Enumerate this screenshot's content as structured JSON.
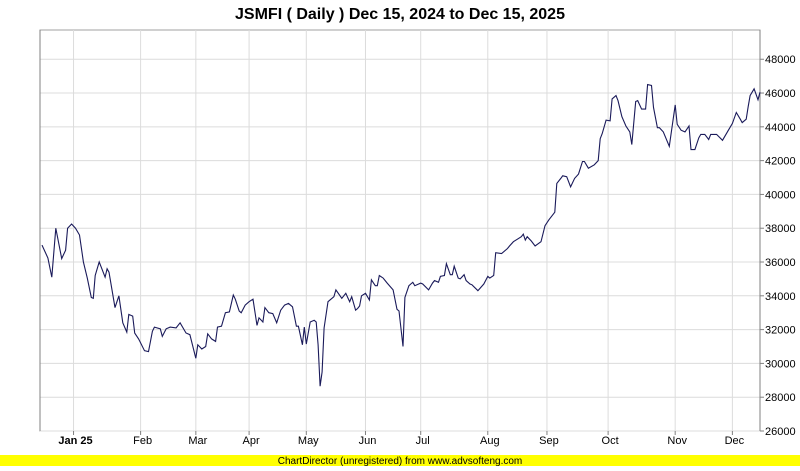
{
  "chart_data": {
    "type": "line",
    "title": "JSMFI ( Daily ) Dec 15, 2024 to Dec 15, 2025",
    "xlabel": "",
    "ylabel": "",
    "x_unit": "days since Dec 15, 2024",
    "xlim": [
      0,
      365
    ],
    "ylim": [
      26000,
      49730
    ],
    "y_ticks": [
      26000,
      28000,
      30000,
      32000,
      34000,
      36000,
      38000,
      40000,
      42000,
      44000,
      46000,
      48000
    ],
    "x_ticks": [
      {
        "label": "Jan 25",
        "day": 17,
        "bold": true
      },
      {
        "label": "Feb",
        "day": 51
      },
      {
        "label": "Mar",
        "day": 79
      },
      {
        "label": "Apr",
        "day": 106
      },
      {
        "label": "May",
        "day": 135
      },
      {
        "label": "Jun",
        "day": 165
      },
      {
        "label": "Jul",
        "day": 193
      },
      {
        "label": "Aug",
        "day": 227
      },
      {
        "label": "Sep",
        "day": 257
      },
      {
        "label": "Oct",
        "day": 288
      },
      {
        "label": "Nov",
        "day": 322
      },
      {
        "label": "Dec",
        "day": 351
      }
    ],
    "grid": true,
    "line_color": "#1a1a5a",
    "series": [
      {
        "name": "JSMFI",
        "points": [
          [
            1,
            37000
          ],
          [
            4,
            36240
          ],
          [
            6,
            35100
          ],
          [
            8,
            38000
          ],
          [
            11,
            36200
          ],
          [
            13,
            36700
          ],
          [
            14,
            38000
          ],
          [
            16,
            38250
          ],
          [
            18,
            38000
          ],
          [
            20,
            37600
          ],
          [
            22,
            36000
          ],
          [
            24,
            35050
          ],
          [
            26,
            33900
          ],
          [
            27,
            33850
          ],
          [
            28,
            35200
          ],
          [
            30,
            36000
          ],
          [
            31,
            35700
          ],
          [
            33,
            35100
          ],
          [
            34,
            35600
          ],
          [
            35,
            35400
          ],
          [
            38,
            33300
          ],
          [
            40,
            34000
          ],
          [
            42,
            32400
          ],
          [
            44,
            31850
          ],
          [
            45,
            32900
          ],
          [
            47,
            32800
          ],
          [
            48,
            31800
          ],
          [
            50,
            31450
          ],
          [
            53,
            30750
          ],
          [
            55,
            30700
          ],
          [
            57,
            31900
          ],
          [
            58,
            32150
          ],
          [
            61,
            32050
          ],
          [
            62,
            31600
          ],
          [
            64,
            32050
          ],
          [
            66,
            32150
          ],
          [
            69,
            32100
          ],
          [
            71,
            32400
          ],
          [
            74,
            31800
          ],
          [
            76,
            31700
          ],
          [
            79,
            30300
          ],
          [
            80,
            31100
          ],
          [
            82,
            30850
          ],
          [
            84,
            31000
          ],
          [
            85,
            31750
          ],
          [
            87,
            31450
          ],
          [
            89,
            31300
          ],
          [
            90,
            32150
          ],
          [
            92,
            32200
          ],
          [
            94,
            33000
          ],
          [
            96,
            33050
          ],
          [
            98,
            34050
          ],
          [
            99,
            33800
          ],
          [
            101,
            33100
          ],
          [
            102,
            33000
          ],
          [
            104,
            33450
          ],
          [
            106,
            33650
          ],
          [
            108,
            33800
          ],
          [
            110,
            32250
          ],
          [
            111,
            32700
          ],
          [
            113,
            32450
          ],
          [
            114,
            33300
          ],
          [
            116,
            33000
          ],
          [
            118,
            32950
          ],
          [
            120,
            32400
          ],
          [
            122,
            33150
          ],
          [
            124,
            33450
          ],
          [
            126,
            33550
          ],
          [
            128,
            33350
          ],
          [
            130,
            32200
          ],
          [
            131,
            32200
          ],
          [
            133,
            31100
          ],
          [
            134,
            32150
          ],
          [
            135,
            31150
          ],
          [
            137,
            32450
          ],
          [
            139,
            32550
          ],
          [
            140,
            32450
          ],
          [
            141,
            31100
          ],
          [
            142,
            28650
          ],
          [
            143,
            29500
          ],
          [
            144,
            32100
          ],
          [
            146,
            33650
          ],
          [
            149,
            33950
          ],
          [
            150,
            34350
          ],
          [
            153,
            33850
          ],
          [
            155,
            34150
          ],
          [
            156,
            33900
          ],
          [
            157,
            33650
          ],
          [
            158,
            33950
          ],
          [
            160,
            33150
          ],
          [
            161,
            33250
          ],
          [
            162,
            33400
          ],
          [
            163,
            34000
          ],
          [
            165,
            34150
          ],
          [
            167,
            33750
          ],
          [
            168,
            34950
          ],
          [
            170,
            34600
          ],
          [
            171,
            34600
          ],
          [
            172,
            35200
          ],
          [
            174,
            35050
          ],
          [
            176,
            34750
          ],
          [
            179,
            34350
          ],
          [
            181,
            33200
          ],
          [
            182,
            33100
          ],
          [
            184,
            31000
          ],
          [
            185,
            33900
          ],
          [
            187,
            34600
          ],
          [
            188,
            34700
          ],
          [
            189,
            34800
          ],
          [
            190,
            34600
          ],
          [
            193,
            34750
          ],
          [
            194,
            34700
          ],
          [
            197,
            34350
          ],
          [
            199,
            34750
          ],
          [
            200,
            34900
          ],
          [
            202,
            34800
          ],
          [
            203,
            35150
          ],
          [
            205,
            35200
          ],
          [
            206,
            35900
          ],
          [
            208,
            35250
          ],
          [
            209,
            35250
          ],
          [
            210,
            35750
          ],
          [
            212,
            35050
          ],
          [
            213,
            35000
          ],
          [
            215,
            35250
          ],
          [
            216,
            34900
          ],
          [
            218,
            34700
          ],
          [
            219,
            34650
          ],
          [
            222,
            34300
          ],
          [
            225,
            34700
          ],
          [
            227,
            35150
          ],
          [
            228,
            35050
          ],
          [
            230,
            35200
          ],
          [
            231,
            36550
          ],
          [
            234,
            36500
          ],
          [
            237,
            36800
          ],
          [
            238,
            36950
          ],
          [
            240,
            37200
          ],
          [
            242,
            37350
          ],
          [
            244,
            37500
          ],
          [
            245,
            37650
          ],
          [
            246,
            37300
          ],
          [
            247,
            37500
          ],
          [
            249,
            37250
          ],
          [
            251,
            36950
          ],
          [
            254,
            37200
          ],
          [
            256,
            38150
          ],
          [
            258,
            38500
          ],
          [
            261,
            38950
          ],
          [
            262,
            40650
          ],
          [
            264,
            40950
          ],
          [
            265,
            41100
          ],
          [
            267,
            41050
          ],
          [
            269,
            40450
          ],
          [
            271,
            40950
          ],
          [
            273,
            41200
          ],
          [
            275,
            41950
          ],
          [
            276,
            41950
          ],
          [
            278,
            41550
          ],
          [
            281,
            41750
          ],
          [
            283,
            42000
          ],
          [
            284,
            43300
          ],
          [
            285,
            43600
          ],
          [
            287,
            44400
          ],
          [
            289,
            44350
          ],
          [
            290,
            45650
          ],
          [
            292,
            45850
          ],
          [
            293,
            45550
          ],
          [
            295,
            44600
          ],
          [
            297,
            44050
          ],
          [
            299,
            43700
          ],
          [
            300,
            42950
          ],
          [
            302,
            45500
          ],
          [
            303,
            45550
          ],
          [
            305,
            45050
          ],
          [
            307,
            45050
          ],
          [
            308,
            46500
          ],
          [
            310,
            46450
          ],
          [
            311,
            45150
          ],
          [
            313,
            43950
          ],
          [
            314,
            43950
          ],
          [
            316,
            43700
          ],
          [
            319,
            42850
          ],
          [
            322,
            45300
          ],
          [
            323,
            44150
          ],
          [
            325,
            43800
          ],
          [
            327,
            43700
          ],
          [
            329,
            44050
          ],
          [
            330,
            42650
          ],
          [
            332,
            42650
          ],
          [
            334,
            43350
          ],
          [
            335,
            43550
          ],
          [
            337,
            43550
          ],
          [
            339,
            43250
          ],
          [
            340,
            43550
          ],
          [
            343,
            43550
          ],
          [
            346,
            43200
          ],
          [
            349,
            43800
          ],
          [
            351,
            44200
          ],
          [
            353,
            44850
          ],
          [
            355,
            44450
          ],
          [
            356,
            44250
          ],
          [
            358,
            44450
          ],
          [
            359,
            45200
          ],
          [
            360,
            45850
          ],
          [
            362,
            46250
          ],
          [
            364,
            45600
          ],
          [
            365,
            46050
          ]
        ]
      }
    ]
  },
  "footer": "ChartDirector (unregistered) from www.advsofteng.com",
  "colors": {
    "footer_bg": "#ffff00",
    "grid": "#dcdcdc",
    "line": "#1a1a5a"
  }
}
